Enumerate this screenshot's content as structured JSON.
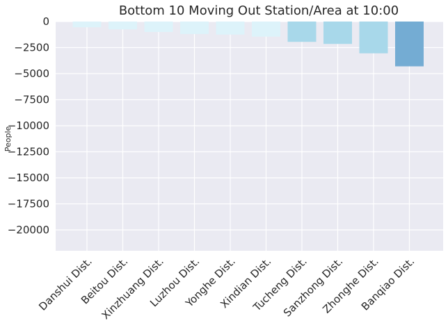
{
  "chart_data": {
    "type": "bar",
    "title": "Bottom 10 Moving Out Station/Area at 10:00",
    "xlabel": "",
    "ylabel": "People",
    "categories": [
      "Danshui Dist.",
      "Beitou Dist.",
      "Xinzhuang Dist.",
      "Luzhou Dist.",
      "Yonghe Dist.",
      "Xindian Dist.",
      "Tucheng Dist.",
      "Sanzhong Dist.",
      "Zhonghe Dist.",
      "Banqiao Dist."
    ],
    "values": [
      -550,
      -750,
      -1000,
      -1200,
      -1250,
      -1450,
      -1950,
      -2150,
      -3050,
      -4300
    ],
    "bar_colors": [
      "#ddf3fa",
      "#ddf3fa",
      "#ddf3fa",
      "#ddf3fa",
      "#ddf3fa",
      "#ddf3fa",
      "#a8d8ea",
      "#a8d8ea",
      "#a8d8ea",
      "#74acd3"
    ],
    "yticks": [
      0,
      -2500,
      -5000,
      -7500,
      -10000,
      -12500,
      -15000,
      -17500,
      -20000
    ],
    "ytick_labels": [
      "0",
      "−2500",
      "−5000",
      "−7500",
      "−10000",
      "−12500",
      "−15000",
      "−17500",
      "−20000"
    ],
    "ylim": [
      -22000,
      0
    ],
    "grid": true,
    "background_color": "#eaeaf2",
    "grid_color": "#ffffff"
  }
}
